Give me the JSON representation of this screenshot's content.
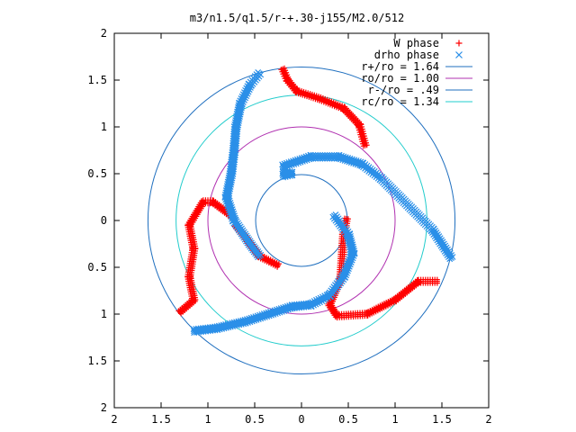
{
  "chart_data": {
    "type": "scatter",
    "title": "m3/n1.5/q1.5/r-+.30-j155/M2.0/512",
    "xlim": [
      -2,
      2
    ],
    "ylim": [
      -2,
      2
    ],
    "x_ticks": [
      -2,
      -1.5,
      -1,
      -0.5,
      0,
      0.5,
      1,
      1.5,
      2
    ],
    "y_ticks": [
      -2,
      -1.5,
      -1,
      -0.5,
      0,
      0.5,
      1,
      1.5,
      2
    ],
    "x_tick_labels": [
      "2",
      "1.5",
      "1",
      "0.5",
      "0",
      "0.5",
      "1",
      "1.5",
      "2"
    ],
    "y_tick_labels": [
      "2",
      "1.5",
      "1",
      "0.5",
      "0",
      "0.5",
      "1",
      "1.5",
      "2"
    ],
    "grid": false,
    "legend_position": "top-right",
    "circles": [
      {
        "label": "r+/ro = 1.64",
        "r": 1.64,
        "color": "#1f6fbf"
      },
      {
        "label": "ro/ro = 1.00",
        "r": 1.0,
        "color": "#b030b0"
      },
      {
        "label": "r-/ro = .49",
        "r": 0.49,
        "color": "#1f6fbf"
      },
      {
        "label": "rc/ro = 1.34",
        "r": 1.34,
        "color": "#22cccc"
      }
    ],
    "series": [
      {
        "name": "W phase",
        "marker": "+",
        "color": "#ff0000",
        "arms": [
          [
            [
              -0.2,
              1.62
            ],
            [
              -0.15,
              1.5
            ],
            [
              -0.05,
              1.38
            ],
            [
              0.2,
              1.3
            ],
            [
              0.45,
              1.2
            ],
            [
              0.62,
              1.02
            ],
            [
              0.68,
              0.8
            ]
          ],
          [
            [
              0.48,
              0.02
            ],
            [
              0.45,
              -0.15
            ],
            [
              0.42,
              -0.62
            ],
            [
              0.3,
              -0.9
            ],
            [
              0.38,
              -1.02
            ],
            [
              0.7,
              -1.0
            ],
            [
              1.0,
              -0.85
            ],
            [
              1.25,
              -0.65
            ],
            [
              1.45,
              -0.65
            ]
          ],
          [
            [
              -0.7,
              -0.05
            ],
            [
              -0.55,
              -0.25
            ],
            [
              -0.45,
              -0.38
            ],
            [
              -0.25,
              -0.48
            ]
          ],
          [
            [
              -1.3,
              -0.98
            ],
            [
              -1.15,
              -0.85
            ],
            [
              -1.2,
              -0.6
            ],
            [
              -1.15,
              -0.3
            ],
            [
              -1.2,
              -0.05
            ],
            [
              -1.05,
              0.2
            ],
            [
              -0.95,
              0.2
            ],
            [
              -0.75,
              0.05
            ]
          ]
        ]
      },
      {
        "name": "drho phase",
        "marker": "x",
        "color": "#2a8fe8",
        "arms": [
          [
            [
              -0.2,
              0.48
            ],
            [
              -0.1,
              0.5
            ],
            [
              -0.2,
              0.52
            ]
          ],
          [
            [
              -0.45,
              1.57
            ],
            [
              -0.55,
              1.45
            ],
            [
              -0.65,
              1.25
            ],
            [
              -0.7,
              1.0
            ],
            [
              -0.72,
              0.75
            ],
            [
              -0.75,
              0.5
            ],
            [
              -0.8,
              0.25
            ],
            [
              -0.72,
              0.0
            ],
            [
              -0.55,
              -0.25
            ],
            [
              -0.45,
              -0.38
            ]
          ],
          [
            [
              -0.2,
              0.58
            ],
            [
              0.1,
              0.68
            ],
            [
              0.4,
              0.68
            ],
            [
              0.65,
              0.6
            ],
            [
              0.85,
              0.45
            ],
            [
              1.0,
              0.3
            ],
            [
              1.2,
              0.1
            ],
            [
              1.4,
              -0.1
            ],
            [
              1.6,
              -0.4
            ]
          ],
          [
            [
              0.35,
              0.05
            ],
            [
              0.5,
              -0.15
            ],
            [
              0.55,
              -0.35
            ],
            [
              0.45,
              -0.6
            ],
            [
              0.3,
              -0.8
            ],
            [
              0.1,
              -0.9
            ],
            [
              -0.1,
              -0.92
            ],
            [
              -0.35,
              -1.0
            ],
            [
              -0.6,
              -1.08
            ],
            [
              -0.9,
              -1.15
            ],
            [
              -1.15,
              -1.18
            ]
          ]
        ]
      }
    ]
  }
}
